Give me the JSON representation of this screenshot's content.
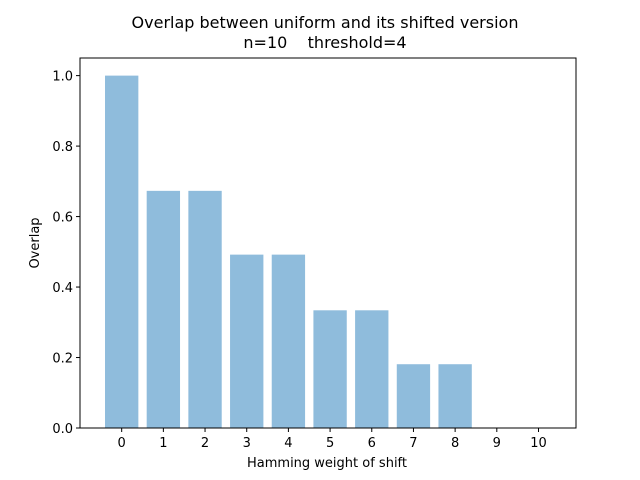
{
  "chart_data": {
    "type": "bar",
    "title_line1": "Overlap between uniform and its shifted version",
    "title_line2": "n=10    threshold=4",
    "xlabel": "Hamming weight of shift",
    "ylabel": "Overlap",
    "categories": [
      "0",
      "1",
      "2",
      "3",
      "4",
      "5",
      "6",
      "7",
      "8",
      "9",
      "10"
    ],
    "values": [
      1.0,
      0.673,
      0.673,
      0.492,
      0.492,
      0.334,
      0.334,
      0.181,
      0.181,
      0.0,
      0.0
    ],
    "ylim": [
      0,
      1.05
    ],
    "xlim": [
      -1.0,
      10.9
    ],
    "yticks": [
      0.0,
      0.2,
      0.4,
      0.6,
      0.8,
      1.0
    ],
    "ytick_labels": [
      "0.0",
      "0.2",
      "0.4",
      "0.6",
      "0.8",
      "1.0"
    ],
    "bar_color": "#8fbcdc",
    "grid": false,
    "legend": "none"
  }
}
